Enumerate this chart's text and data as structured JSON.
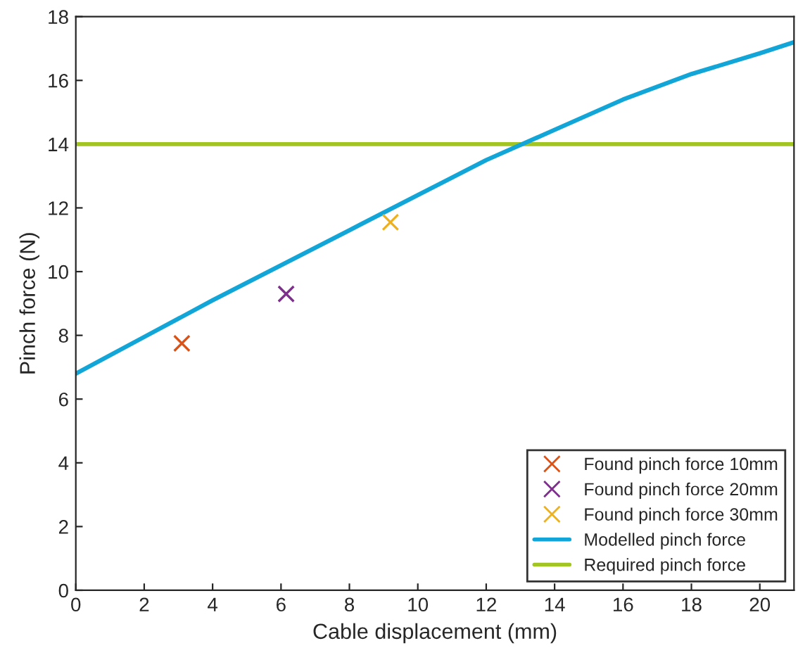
{
  "chart_data": {
    "type": "line",
    "xlabel": "Cable displacement (mm)",
    "ylabel": "Pinch force (N)",
    "xlim": [
      0,
      21
    ],
    "xticks": [
      0,
      2,
      4,
      6,
      8,
      10,
      12,
      14,
      16,
      18,
      20
    ],
    "ylim": [
      0,
      18
    ],
    "yticks": [
      0,
      2,
      4,
      6,
      8,
      10,
      12,
      14,
      16,
      18
    ],
    "series": [
      {
        "name": "Found pinch force 10mm",
        "type": "scatter",
        "color": "#d95319",
        "marker": "cross",
        "x": [
          3.1
        ],
        "values": [
          7.75
        ]
      },
      {
        "name": "Found pinch force 20mm",
        "type": "scatter",
        "color": "#7e2f8e",
        "marker": "cross",
        "x": [
          6.15
        ],
        "values": [
          9.3
        ]
      },
      {
        "name": "Found pinch force 30mm",
        "type": "scatter",
        "color": "#edb120",
        "marker": "cross",
        "x": [
          9.2
        ],
        "values": [
          11.55
        ]
      },
      {
        "name": "Modelled pinch force",
        "color": "#12a6d8",
        "marker": "none",
        "line_style": "solid",
        "x": [
          0,
          2,
          4,
          6,
          8,
          10,
          12,
          14,
          16,
          18,
          20,
          21
        ],
        "values": [
          6.8,
          7.95,
          9.1,
          10.2,
          11.3,
          12.4,
          13.5,
          14.45,
          15.4,
          16.2,
          16.85,
          17.2
        ]
      }
    ],
    "ref_lines": [
      {
        "axis": "y",
        "value": 14,
        "label": "Required pinch force",
        "color": "#a2c523",
        "line_style": "solid"
      }
    ],
    "legend": "bottom right",
    "grid": false
  }
}
